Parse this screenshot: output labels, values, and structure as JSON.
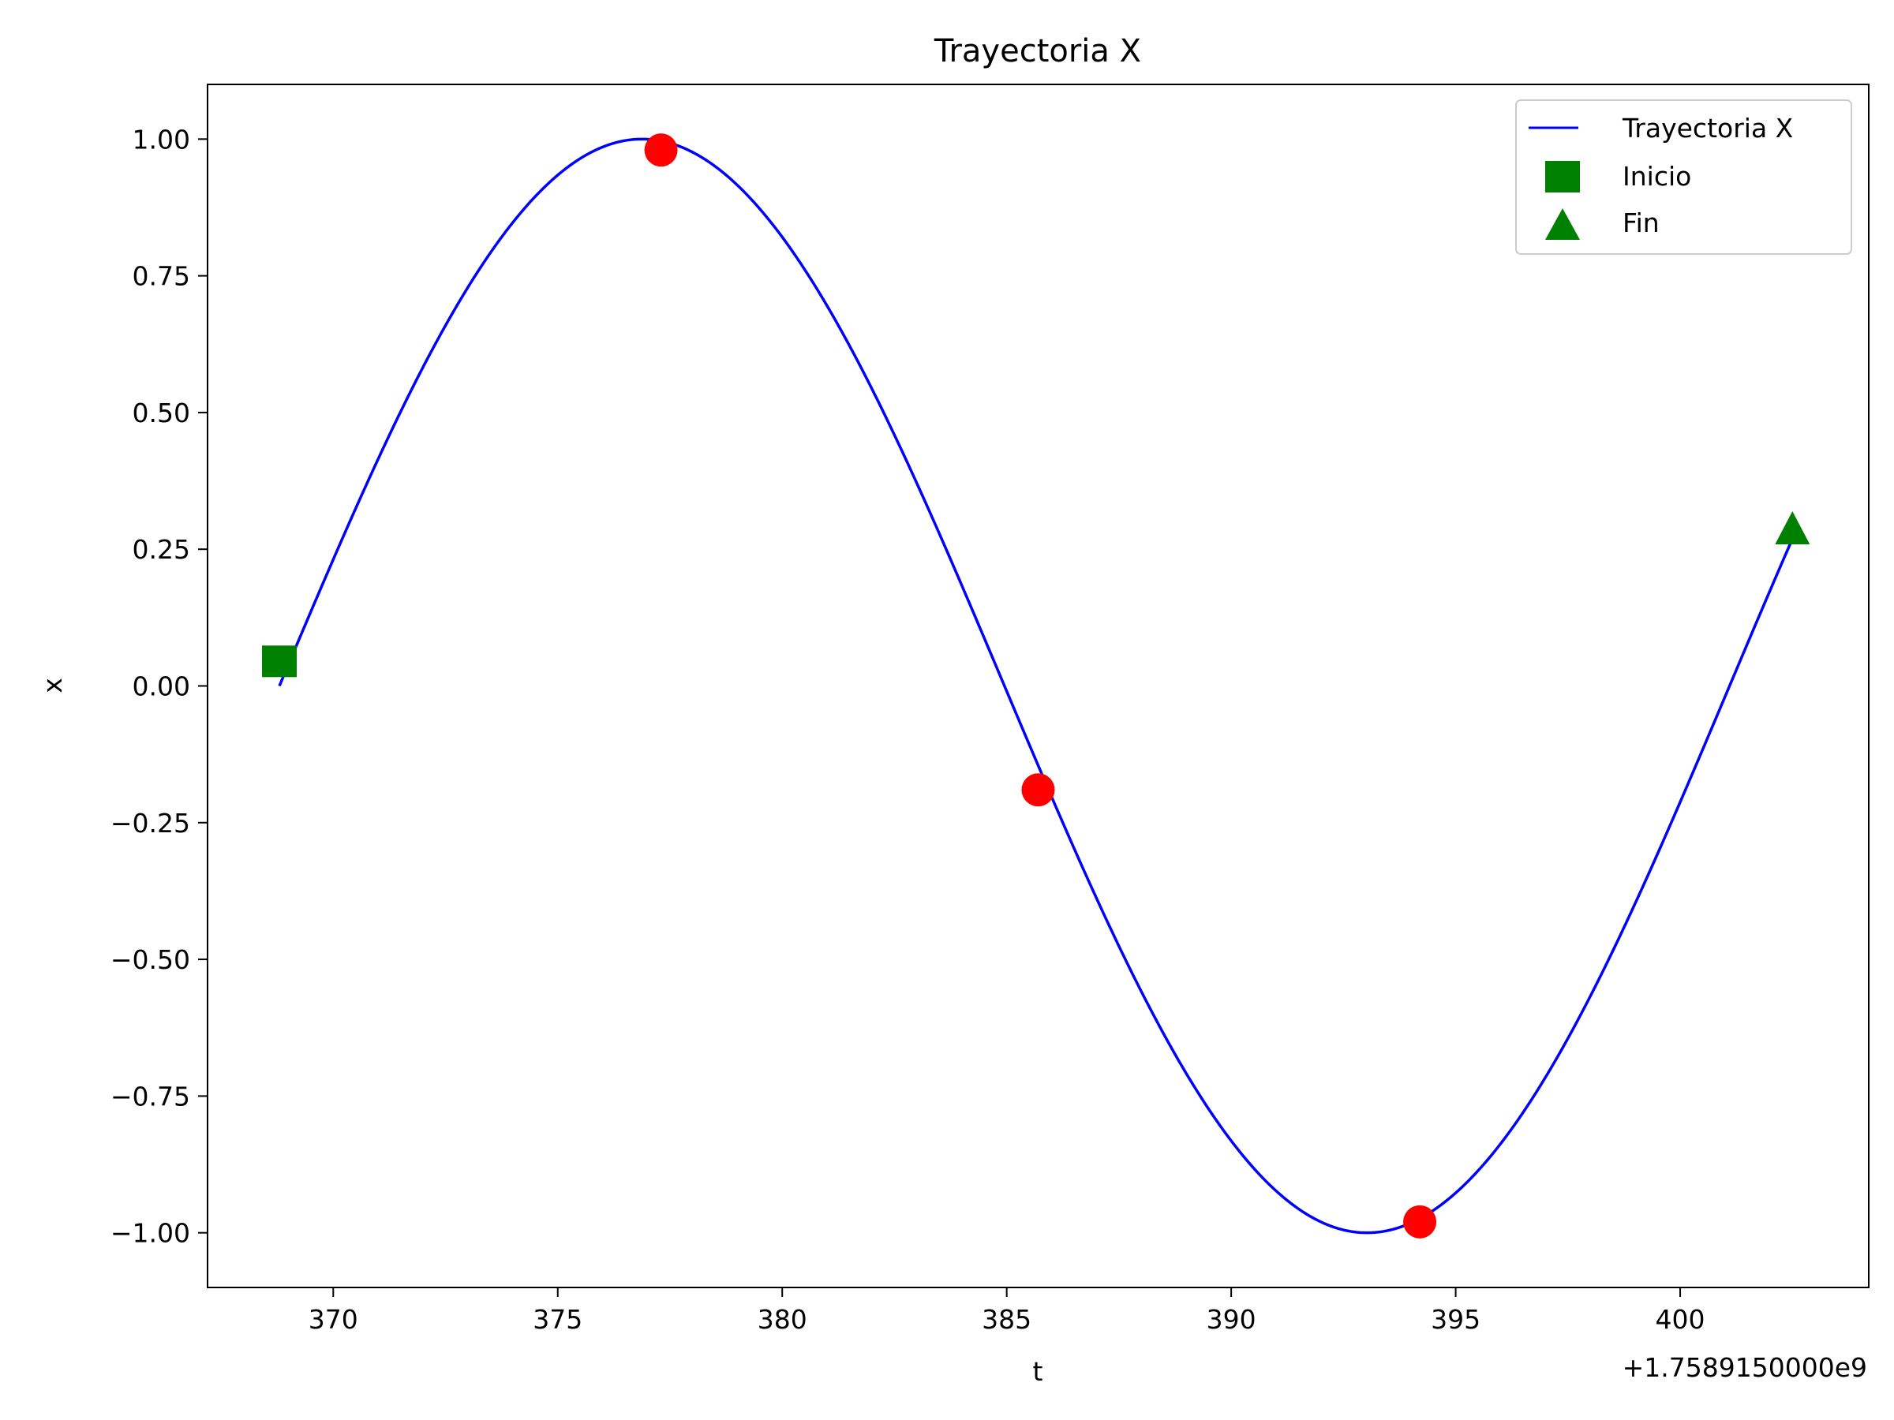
{
  "chart_data": {
    "type": "line",
    "title": "Trayectoria X",
    "xlabel": "t",
    "ylabel": "x",
    "x_offset_label": "+1.7589150000e9",
    "xlim": [
      367.2,
      404.2
    ],
    "ylim": [
      -1.1,
      1.1
    ],
    "x_ticks": [
      370,
      375,
      380,
      385,
      390,
      395,
      400
    ],
    "x_tick_labels": [
      "370",
      "375",
      "380",
      "385",
      "390",
      "395",
      "400"
    ],
    "y_ticks": [
      1.0,
      0.75,
      0.5,
      0.25,
      0.0,
      -0.25,
      -0.5,
      -0.75,
      -1.0
    ],
    "y_tick_labels": [
      "1.00",
      "0.75",
      "0.50",
      "0.25",
      "0.00",
      "−0.25",
      "−0.50",
      "−0.75",
      "−1.00"
    ],
    "grid": false,
    "legend_position": "top-right",
    "series": [
      {
        "name": "Trayectoria X",
        "kind": "line",
        "color": "#0000ff",
        "function": "sin",
        "amplitude": 1.0,
        "period": 32.3,
        "phase_zero_t": 368.8,
        "x_start": 368.8,
        "x_end": 402.5
      },
      {
        "name": "Inicio",
        "kind": "marker",
        "marker": "square",
        "color": "#008000",
        "points": [
          {
            "x": 368.8,
            "y": 0.045
          }
        ]
      },
      {
        "name": "Fin",
        "kind": "marker",
        "marker": "triangle",
        "color": "#008000",
        "points": [
          {
            "x": 402.5,
            "y": 0.285
          }
        ]
      },
      {
        "name": "",
        "kind": "marker",
        "marker": "circle",
        "color": "#ff0000",
        "points": [
          {
            "x": 377.3,
            "y": 0.98
          },
          {
            "x": 385.7,
            "y": -0.19
          },
          {
            "x": 394.2,
            "y": -0.98
          }
        ]
      }
    ],
    "legend": [
      "Trayectoria X",
      "Inicio",
      "Fin"
    ]
  }
}
